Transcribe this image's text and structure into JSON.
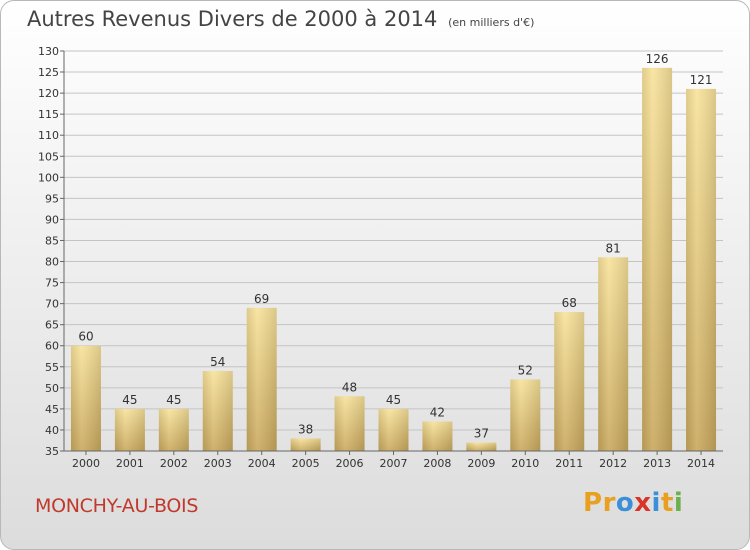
{
  "header": {
    "title": "Autres Revenus Divers de 2000 à 2014",
    "unit": "(en milliers d'€)"
  },
  "footer": {
    "location": "MONCHY-AU-BOIS",
    "brand": "Proxiti"
  },
  "colors": {
    "bar_top": "#f8e29a",
    "bar_bottom": "#c9a85d",
    "location_text": "#c0392b",
    "brand_letters": [
      "#e8a020",
      "#e8a020",
      "#3a8fd8",
      "#d8342a",
      "#3a8fd8",
      "#e8a020",
      "#6ab04c"
    ]
  },
  "chart_data": {
    "type": "bar",
    "categories": [
      "2000",
      "2001",
      "2002",
      "2003",
      "2004",
      "2005",
      "2006",
      "2007",
      "2008",
      "2009",
      "2010",
      "2011",
      "2012",
      "2013",
      "2014"
    ],
    "values": [
      60,
      45,
      45,
      54,
      69,
      38,
      48,
      45,
      42,
      37,
      52,
      68,
      81,
      126,
      121
    ],
    "ylim": [
      35,
      130
    ],
    "yticks": [
      35,
      40,
      45,
      50,
      55,
      60,
      65,
      70,
      75,
      80,
      85,
      90,
      95,
      100,
      105,
      110,
      115,
      120,
      125,
      130
    ],
    "grid": true,
    "legend": "none"
  }
}
